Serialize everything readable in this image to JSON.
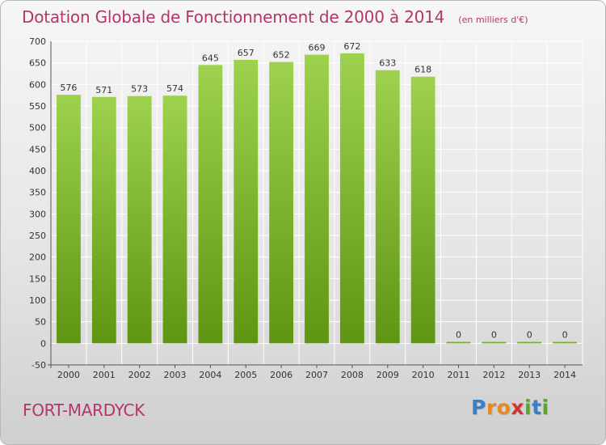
{
  "title": "Dotation Globale de Fonctionnement de 2000 à 2014",
  "unit_note": "(en milliers d'€)",
  "commune": "FORT-MARDYCK",
  "logo": {
    "letters": [
      "P",
      "r",
      "o",
      "x",
      "i",
      "t",
      "i"
    ],
    "colors": [
      "#3a7fc6",
      "#e58a1f",
      "#e58a1f",
      "#d63030",
      "#5aa531",
      "#3a7fc6",
      "#5aa531"
    ]
  },
  "colors": {
    "title": "#b5356a",
    "bar_light": "#9ed24e",
    "bar_dark": "#5e9512",
    "grid": "#ffffff"
  },
  "chart_data": {
    "type": "bar",
    "categories": [
      "2000",
      "2001",
      "2002",
      "2003",
      "2004",
      "2005",
      "2006",
      "2007",
      "2008",
      "2009",
      "2010",
      "2011",
      "2012",
      "2013",
      "2014"
    ],
    "values": [
      576,
      571,
      573,
      574,
      645,
      657,
      652,
      669,
      672,
      633,
      618,
      0,
      0,
      0,
      0
    ],
    "title": "Dotation Globale de Fonctionnement de 2000 à 2014",
    "xlabel": "",
    "ylabel": "",
    "ylim": [
      -50,
      700
    ],
    "yticks": [
      -50,
      0,
      50,
      100,
      150,
      200,
      250,
      300,
      350,
      400,
      450,
      500,
      550,
      600,
      650,
      700
    ],
    "grid": true,
    "legend": "none"
  }
}
